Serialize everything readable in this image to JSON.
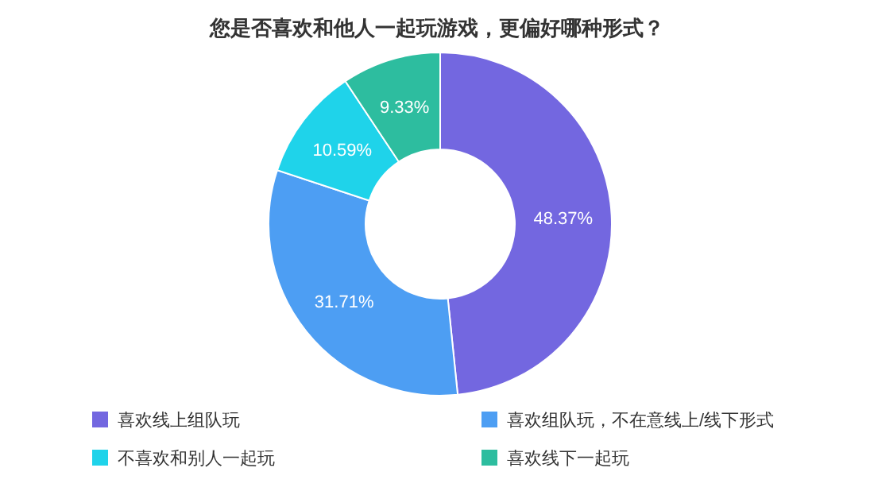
{
  "chart_data": {
    "type": "donut",
    "title": "您是否喜欢和他人一起玩游戏，更偏好哪种形式？",
    "categories": [
      "喜欢线上组队玩",
      "喜欢组队玩，不在意线上/线下形式",
      "不喜欢和别人一起玩",
      "喜欢线下一起玩"
    ],
    "values": [
      48.37,
      31.71,
      10.59,
      9.33
    ],
    "colors": [
      "#7367e0",
      "#4d9ef3",
      "#1fd3ea",
      "#2dbd9f"
    ],
    "value_labels": [
      "48.37%",
      "31.71%",
      "10.59%",
      "9.33%"
    ],
    "legend": "bottom"
  }
}
